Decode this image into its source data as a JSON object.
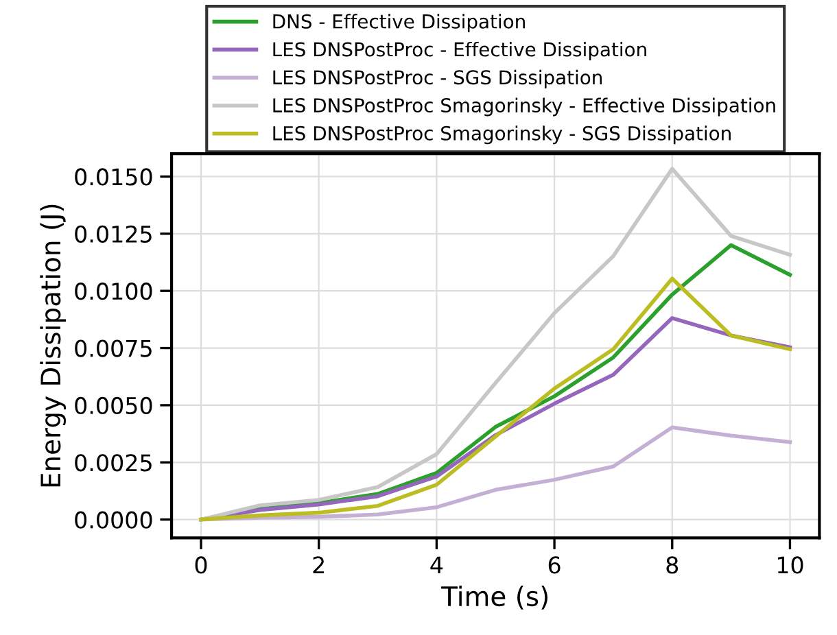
{
  "chart_data": {
    "type": "line",
    "xlabel": "Time (s)",
    "ylabel": "Energy Dissipation (J)",
    "x": [
      0,
      1,
      2,
      3,
      4,
      5,
      6,
      7,
      8,
      9,
      10
    ],
    "series": [
      {
        "name": "DNS - Effective Dissipation",
        "color": "#2ca02c",
        "values": [
          0,
          0.00052,
          0.00072,
          0.00112,
          0.00204,
          0.00405,
          0.00539,
          0.00709,
          0.00984,
          0.012,
          0.0107
        ]
      },
      {
        "name": "LES DNSPostProc - Effective Dissipation",
        "color": "#9467bd",
        "values": [
          0,
          0.00042,
          0.00066,
          0.00102,
          0.00188,
          0.00369,
          0.00507,
          0.00633,
          0.00881,
          0.00805,
          0.00753
        ]
      },
      {
        "name": "LES DNSPostProc - SGS Dissipation",
        "color": "#c5b0d5",
        "values": [
          0,
          8e-05,
          0.00012,
          0.00022,
          0.00054,
          0.0013,
          0.00174,
          0.00232,
          0.00403,
          0.00367,
          0.00339
        ]
      },
      {
        "name": "LES DNSPostProc Smagorinsky - Effective Dissipation",
        "color": "#c7c7c7",
        "values": [
          0,
          0.00062,
          0.00086,
          0.00142,
          0.00286,
          0.00597,
          0.00903,
          0.01152,
          0.01534,
          0.0124,
          0.01158
        ]
      },
      {
        "name": "LES DNSPostProc Smagorinsky - SGS Dissipation",
        "color": "#bcbd22",
        "values": [
          0,
          0.00018,
          0.0003,
          0.0006,
          0.00152,
          0.00363,
          0.00573,
          0.00745,
          0.01054,
          0.00805,
          0.00745
        ]
      }
    ],
    "xlim": [
      -0.5,
      10.5
    ],
    "ylim": [
      -0.0008,
      0.016
    ],
    "xticks": [
      0,
      2,
      4,
      6,
      8,
      10
    ],
    "yticks": [
      {
        "value": 0,
        "label": "0.0000"
      },
      {
        "value": 0.0025,
        "label": "0.0025"
      },
      {
        "value": 0.005,
        "label": "0.0050"
      },
      {
        "value": 0.0075,
        "label": "0.0075"
      },
      {
        "value": 0.01,
        "label": "0.0100"
      },
      {
        "value": 0.0125,
        "label": "0.0125"
      },
      {
        "value": 0.015,
        "label": "0.0150"
      }
    ],
    "grid": true,
    "legend": "top",
    "marker": "none",
    "line_style": "solid"
  }
}
